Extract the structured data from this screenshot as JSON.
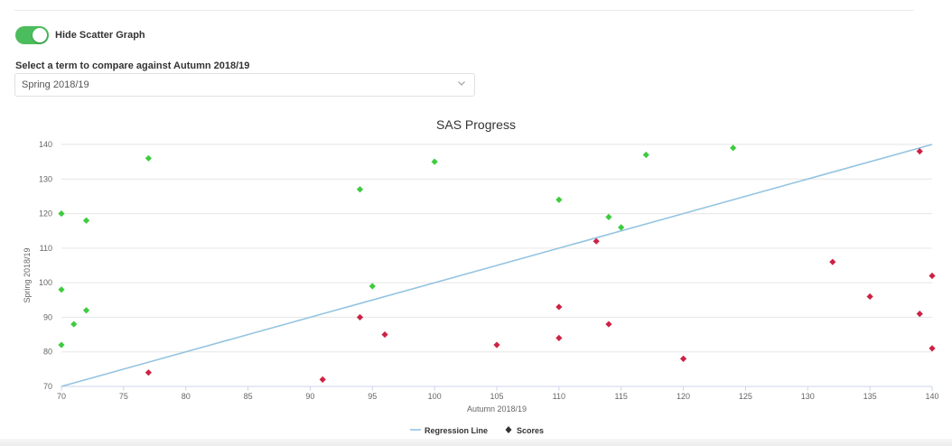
{
  "toggle": {
    "label": "Hide Scatter Graph",
    "on": true,
    "color": "#4cbd5c"
  },
  "term_select": {
    "label": "Select a term to compare against Autumn 2018/19",
    "value": "Spring 2018/19"
  },
  "chart_data": {
    "type": "scatter",
    "title": "SAS Progress",
    "xlabel": "Autumn 2018/19",
    "ylabel": "Spring 2018/19",
    "xlim": [
      70,
      140
    ],
    "ylim": [
      70,
      140
    ],
    "xticks": [
      70,
      75,
      80,
      85,
      90,
      95,
      100,
      105,
      110,
      115,
      120,
      125,
      130,
      135,
      140
    ],
    "yticks": [
      70,
      80,
      90,
      100,
      110,
      120,
      130,
      140
    ],
    "grid": true,
    "legend_position": "bottom",
    "regression_line": {
      "name": "Regression Line",
      "color": "#94c4e0",
      "points": [
        [
          70,
          70
        ],
        [
          140,
          140
        ]
      ]
    },
    "series": [
      {
        "name": "Scores",
        "legend_color": "#333333",
        "improved_color": "#3dcc3d",
        "declined_color": "#cc2244",
        "points": [
          {
            "x": 70,
            "y": 120,
            "improved": true
          },
          {
            "x": 70,
            "y": 98,
            "improved": true
          },
          {
            "x": 70,
            "y": 82,
            "improved": true
          },
          {
            "x": 71,
            "y": 88,
            "improved": true
          },
          {
            "x": 72,
            "y": 118,
            "improved": true
          },
          {
            "x": 72,
            "y": 92,
            "improved": true
          },
          {
            "x": 77,
            "y": 136,
            "improved": true
          },
          {
            "x": 94,
            "y": 127,
            "improved": true
          },
          {
            "x": 95,
            "y": 99,
            "improved": true
          },
          {
            "x": 100,
            "y": 135,
            "improved": true
          },
          {
            "x": 110,
            "y": 124,
            "improved": true
          },
          {
            "x": 114,
            "y": 119,
            "improved": true
          },
          {
            "x": 115,
            "y": 116,
            "improved": true
          },
          {
            "x": 117,
            "y": 137,
            "improved": true
          },
          {
            "x": 124,
            "y": 139,
            "improved": true
          },
          {
            "x": 77,
            "y": 74,
            "improved": false
          },
          {
            "x": 91,
            "y": 72,
            "improved": false
          },
          {
            "x": 94,
            "y": 90,
            "improved": false
          },
          {
            "x": 96,
            "y": 85,
            "improved": false
          },
          {
            "x": 105,
            "y": 82,
            "improved": false
          },
          {
            "x": 110,
            "y": 93,
            "improved": false
          },
          {
            "x": 110,
            "y": 84,
            "improved": false
          },
          {
            "x": 113,
            "y": 112,
            "improved": false
          },
          {
            "x": 114,
            "y": 88,
            "improved": false
          },
          {
            "x": 120,
            "y": 78,
            "improved": false
          },
          {
            "x": 132,
            "y": 106,
            "improved": false
          },
          {
            "x": 135,
            "y": 96,
            "improved": false
          },
          {
            "x": 139,
            "y": 138,
            "improved": false
          },
          {
            "x": 139,
            "y": 91,
            "improved": false
          },
          {
            "x": 140,
            "y": 102,
            "improved": false
          },
          {
            "x": 140,
            "y": 81,
            "improved": false
          }
        ]
      }
    ]
  }
}
